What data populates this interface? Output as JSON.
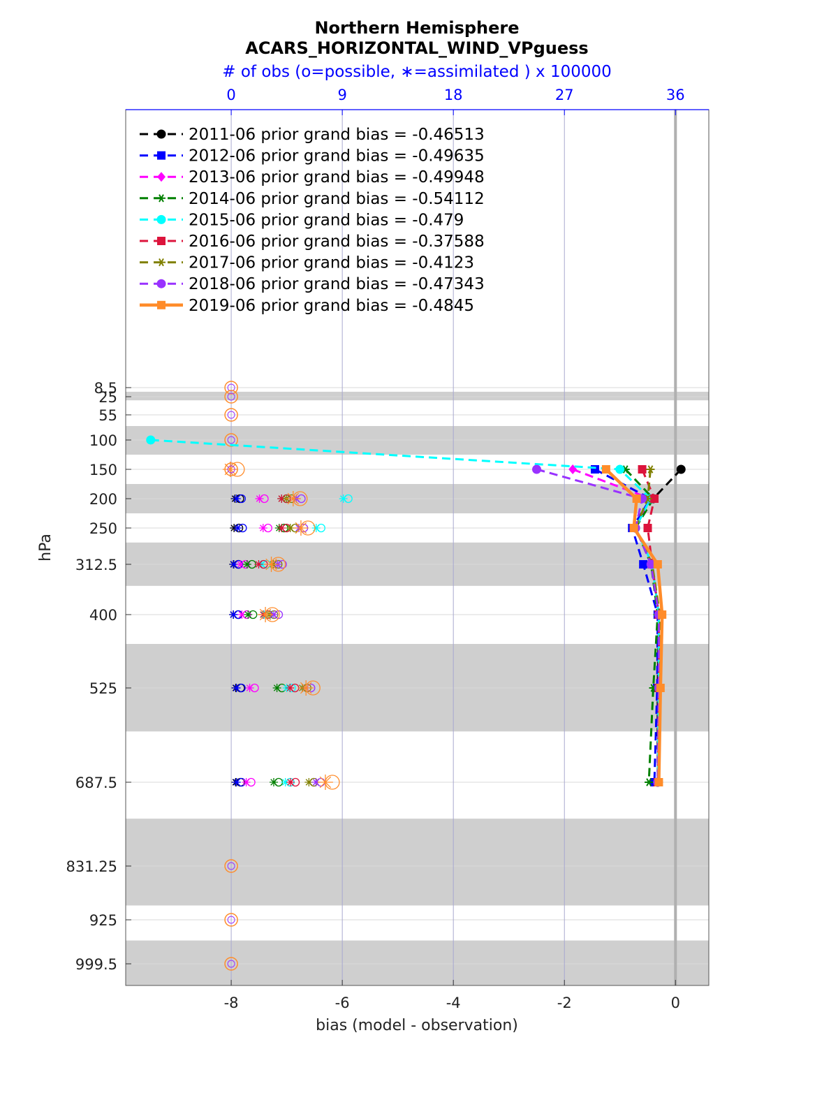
{
  "chart_data": {
    "type": "line",
    "title": "Northern Hemisphere",
    "subtitle": "ACARS_HORIZONTAL_WIND_VPguess",
    "top_axis_label": "# of obs (o=possible, ∗=assimilated ) x 100000",
    "xlabel": "bias (model - observation)",
    "ylabel": "hPa",
    "xlim": [
      -9.9,
      0.6
    ],
    "x_ticks": [
      -8,
      -6,
      -4,
      -2,
      0
    ],
    "x_tick_labels": [
      "-8",
      "-6",
      "-4",
      "-2",
      "0"
    ],
    "top_ticks": [
      0,
      9,
      18,
      27,
      36
    ],
    "top_tick_labels": [
      "0",
      "9",
      "18",
      "27",
      "36"
    ],
    "levels": [
      8.5,
      25,
      55,
      100,
      150,
      200,
      250,
      312.5,
      400,
      525,
      687.5,
      831.25,
      925,
      999.5
    ],
    "level_labels": [
      "8.5",
      "25",
      "55",
      "100",
      "150",
      "200",
      "250",
      "312.5",
      "400",
      "525",
      "687.5",
      "831.25",
      "925",
      "999.5"
    ],
    "shaded_bands": [
      [
        16,
        31
      ],
      [
        75,
        125
      ],
      [
        175,
        225
      ],
      [
        275,
        350
      ],
      [
        450,
        600
      ],
      [
        750,
        900
      ],
      [
        960,
        1020
      ]
    ],
    "grid": true,
    "legend_position": "top-left",
    "series": [
      {
        "name": "2011-06 prior grand bias = -0.46513",
        "color": "#000000",
        "marker": "circle",
        "dash": true,
        "levels": [
          150,
          200,
          250,
          312.5,
          400,
          525,
          687.5
        ],
        "bias": [
          0.1,
          -0.4,
          -0.72,
          -0.42,
          -0.3,
          -0.32,
          -0.32
        ],
        "obs_count": [
          null,
          0.42,
          0.34,
          0.29,
          0.28,
          0.48,
          0.47
        ]
      },
      {
        "name": "2012-06 prior grand bias = -0.49635",
        "color": "#0000ff",
        "marker": "square",
        "dash": true,
        "levels": [
          150,
          200,
          250,
          312.5,
          400,
          525,
          687.5
        ],
        "bias": [
          -1.45,
          -0.45,
          -0.78,
          -0.58,
          -0.32,
          -0.33,
          -0.38
        ],
        "obs_count": [
          null,
          0.55,
          0.64,
          0.33,
          0.3,
          0.54,
          0.55
        ]
      },
      {
        "name": "2013-06 prior grand bias = -0.49948",
        "color": "#ff00ff",
        "marker": "diamond",
        "dash": true,
        "levels": [
          150,
          200,
          250,
          312.5,
          400,
          525,
          687.5
        ],
        "bias": [
          -1.85,
          -0.45,
          -0.72,
          -0.42,
          -0.3,
          -0.3,
          -0.32
        ],
        "obs_count": [
          null,
          2.4,
          2.7,
          0.87,
          0.98,
          1.61,
          1.33
        ]
      },
      {
        "name": "2014-06 prior grand bias = -0.54112",
        "color": "#008000",
        "marker": "star",
        "dash": true,
        "levels": [
          150,
          200,
          250,
          312.5,
          400,
          525,
          687.5
        ],
        "bias": [
          -0.9,
          -0.4,
          -0.72,
          -0.44,
          -0.32,
          -0.4,
          -0.48
        ],
        "obs_count": [
          null,
          4.2,
          4.0,
          1.4,
          1.48,
          3.82,
          3.56
        ]
      },
      {
        "name": "2015-06 prior grand bias = -0.479",
        "color": "#00ffff",
        "marker": "circle",
        "dash": true,
        "levels": [
          100,
          150,
          200,
          250,
          312.5,
          400,
          525,
          687.5
        ],
        "bias": [
          -9.45,
          -1.0,
          -0.45,
          -0.72,
          -0.42,
          -0.3,
          -0.3,
          -0.32
        ],
        "obs_count": [
          null,
          null,
          9.2,
          7.0,
          2.6,
          2.78,
          4.61,
          4.5
        ]
      },
      {
        "name": "2016-06 prior grand bias = -0.37588",
        "color": "#dc143c",
        "marker": "square",
        "dash": true,
        "levels": [
          150,
          200,
          250,
          312.5,
          400,
          525,
          687.5
        ],
        "bias": [
          -0.6,
          -0.38,
          -0.5,
          -0.42,
          -0.3,
          -0.3,
          -0.32
        ],
        "obs_count": [
          null,
          4.2,
          4.2,
          2.34,
          2.7,
          4.88,
          4.92
        ]
      },
      {
        "name": "2017-06 prior grand bias = -0.4123",
        "color": "#808000",
        "marker": "star",
        "dash": true,
        "levels": [
          150,
          200,
          250,
          312.5,
          400,
          525,
          687.5
        ],
        "bias": [
          -0.45,
          -0.5,
          -0.72,
          -0.42,
          -0.28,
          -0.28,
          -0.3
        ],
        "obs_count": [
          null,
          4.6,
          4.9,
          3.52,
          3.18,
          5.87,
          6.41
        ]
      },
      {
        "name": "2018-06 prior grand bias = -0.47343",
        "color": "#9932ff",
        "marker": "circle",
        "dash": true,
        "levels": [
          150,
          200,
          250,
          312.5,
          400,
          525,
          687.5
        ],
        "bias": [
          -2.5,
          -0.6,
          -0.72,
          -0.44,
          -0.3,
          -0.3,
          -0.32
        ],
        "obs_count": [
          null,
          5.4,
          5.6,
          3.88,
          3.56,
          6.18,
          6.98
        ]
      },
      {
        "name": "2019-06 prior grand bias = -0.4845",
        "color": "#ff8c2a",
        "marker": "square",
        "dash": false,
        "levels": [
          150,
          200,
          250,
          312.5,
          400,
          525,
          687.5
        ],
        "bias": [
          -1.25,
          -0.7,
          -0.75,
          -0.32,
          -0.24,
          -0.27,
          -0.3
        ],
        "obs_count": [
          0.1,
          5.19,
          5.82,
          3.42,
          2.94,
          6.23,
          7.8
        ]
      }
    ],
    "empty_obs_levels": [
      8.5,
      25,
      55,
      100,
      150,
      831.25,
      925,
      999.5
    ]
  }
}
